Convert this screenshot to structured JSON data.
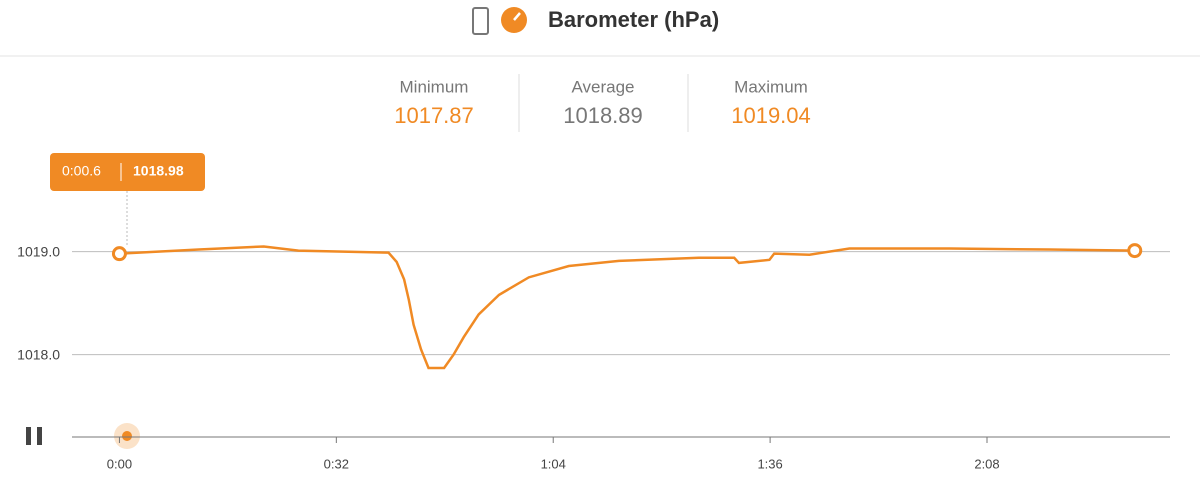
{
  "header": {
    "title": "Barometer (hPa)"
  },
  "stats": [
    {
      "label": "Minimum",
      "value": 1017.87
    },
    {
      "label": "Average",
      "value": 1018.89
    },
    {
      "label": "Maximum",
      "value": 1019.04
    }
  ],
  "tooltip": {
    "time": "0:00.6",
    "value": 1018.98
  },
  "chart_data": {
    "type": "line",
    "x": [
      0,
      11.7,
      21.3,
      26.4,
      39.7,
      40.9,
      42,
      42.7,
      43.4,
      44.5,
      45.6,
      47.9,
      49.3,
      50.8,
      53,
      56,
      60.4,
      66.3,
      73.7,
      85.5,
      90.7,
      91.4,
      95.9,
      96.6,
      101.8,
      107.7,
      122.5,
      137.2,
      149.8
    ],
    "series": [
      {
        "color": "#f08a24",
        "values": [
          1018.98,
          1019.02,
          1019.05,
          1019.01,
          1018.99,
          1018.9,
          1018.73,
          1018.53,
          1018.29,
          1018.05,
          1017.87,
          1017.87,
          1018.0,
          1018.17,
          1018.39,
          1018.58,
          1018.75,
          1018.86,
          1018.91,
          1018.94,
          1018.94,
          1018.89,
          1018.92,
          1018.98,
          1018.97,
          1019.03,
          1019.03,
          1019.02,
          1019.01
        ]
      }
    ],
    "xlim": [
      -7,
      155
    ],
    "ylim": [
      1017.2,
      1020
    ],
    "xticks": [
      {
        "value": 0,
        "label": "0:00"
      },
      {
        "value": 32,
        "label": "0:32"
      },
      {
        "value": 64,
        "label": "1:04"
      },
      {
        "value": 96,
        "label": "1:36"
      },
      {
        "value": 128,
        "label": "2:08"
      }
    ],
    "yticks": [
      {
        "value": 1018,
        "label": "1018.0"
      },
      {
        "value": 1019,
        "label": "1019.0"
      }
    ],
    "grid": true
  }
}
